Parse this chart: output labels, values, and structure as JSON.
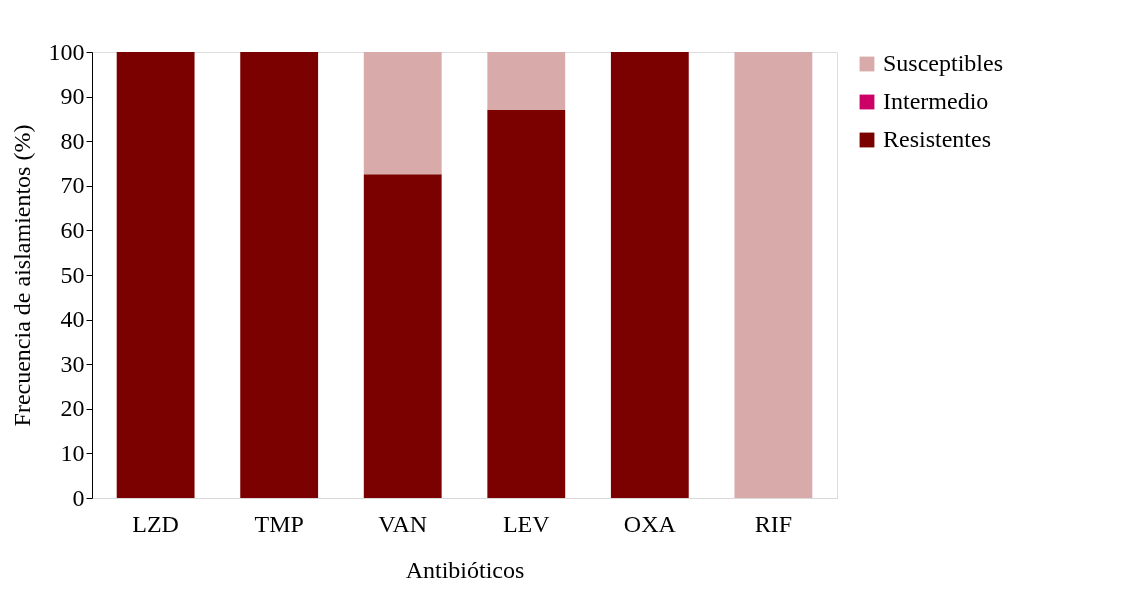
{
  "chart_data": {
    "type": "bar",
    "stacked": true,
    "xlabel": "Antibióticos",
    "ylabel": "Frecuencia de aislamientos (%)",
    "categories": [
      "LZD",
      "TMP",
      "VAN",
      "LEV",
      "OXA",
      "RIF"
    ],
    "series": [
      {
        "name": "Resistentes",
        "color": "#7b0000",
        "values": [
          100,
          100,
          72.6,
          87,
          100,
          0
        ]
      },
      {
        "name": "Intermedio",
        "color": "#cc0066",
        "values": [
          0,
          0,
          0,
          0,
          0,
          0
        ]
      },
      {
        "name": "Susceptibles",
        "color": "#d9aaaa",
        "values": [
          0,
          0,
          27.4,
          13,
          0,
          100
        ]
      }
    ],
    "ylim": [
      0,
      100
    ],
    "yticks": [
      0,
      10,
      20,
      30,
      40,
      50,
      60,
      70,
      80,
      90,
      100
    ],
    "grid": false,
    "legend": "right"
  }
}
